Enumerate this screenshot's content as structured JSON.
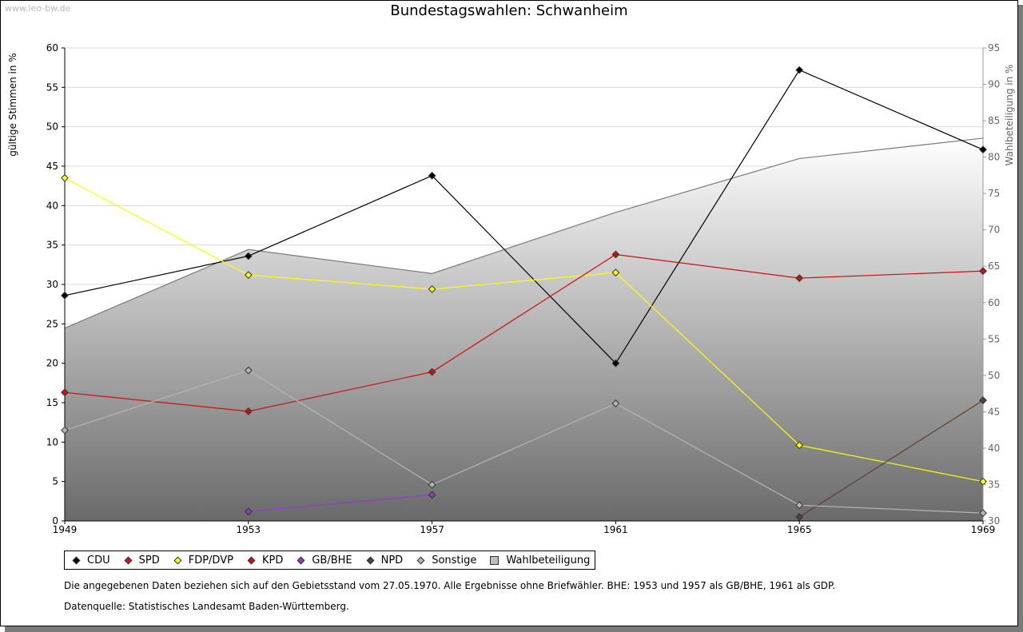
{
  "watermark": "www.leo-bw.de",
  "colors": {
    "CDU": "#000000",
    "SPD": "#dd1111",
    "FDP/DVP": "#ffff00",
    "KPD": "#cc1111",
    "GB/BHE": "#8e3ec9",
    "NPD": "#5a4030",
    "Sonstige": "#b5b5b5",
    "Wahlbeteiligung": "#bdbdbd"
  },
  "chart_data": {
    "type": "line",
    "title": "Bundestagswahlen: Schwanheim",
    "ylabel": "gültige Stimmen in %",
    "ylabel_right": "Wahlbeteiligung in %",
    "x": [
      "1949",
      "1953",
      "1957",
      "1961",
      "1965",
      "1969"
    ],
    "ylim": [
      0,
      60
    ],
    "yticks": [
      0,
      5,
      10,
      15,
      20,
      25,
      30,
      35,
      40,
      45,
      50,
      55,
      60
    ],
    "ylim_right": [
      30,
      95
    ],
    "yticks_right": [
      30,
      35,
      40,
      45,
      50,
      55,
      60,
      65,
      70,
      75,
      80,
      85,
      90,
      95
    ],
    "grid": true,
    "legend_position": "bottom",
    "area": {
      "name": "Wahlbeteiligung",
      "axis": "right",
      "values": [
        56.5,
        67.3,
        64.0,
        72.4,
        79.8,
        82.6
      ]
    },
    "series": [
      {
        "name": "CDU",
        "values": [
          28.6,
          33.6,
          43.8,
          20.0,
          57.2,
          47.1
        ]
      },
      {
        "name": "SPD",
        "values": [
          null,
          null,
          null,
          null,
          null,
          null
        ]
      },
      {
        "name": "FDP/DVP",
        "values": [
          43.5,
          31.2,
          29.4,
          31.5,
          9.6,
          5.0
        ]
      },
      {
        "name": "KPD",
        "values": [
          16.3,
          13.9,
          18.9,
          33.8,
          30.8,
          31.7
        ]
      },
      {
        "name": "GB/BHE",
        "values": [
          null,
          1.2,
          3.3,
          null,
          null,
          null
        ]
      },
      {
        "name": "NPD",
        "values": [
          null,
          null,
          null,
          null,
          0.5,
          15.3
        ]
      },
      {
        "name": "Sonstige",
        "values": [
          11.5,
          19.1,
          4.6,
          14.9,
          2.0,
          1.0
        ]
      }
    ]
  },
  "legend": {
    "items": [
      "CDU",
      "SPD",
      "FDP/DVP",
      "KPD",
      "GB/BHE",
      "NPD",
      "Sonstige",
      "Wahlbeteiligung"
    ]
  },
  "notes": {
    "line1": "Die angegebenen Daten beziehen sich auf den Gebietsstand vom 27.05.1970. Alle Ergebnisse ohne Briefwähler. BHE: 1953 und 1957 als GB/BHE, 1961 als GDP.",
    "line2": "Datenquelle: Statistisches Landesamt Baden-Württemberg."
  }
}
